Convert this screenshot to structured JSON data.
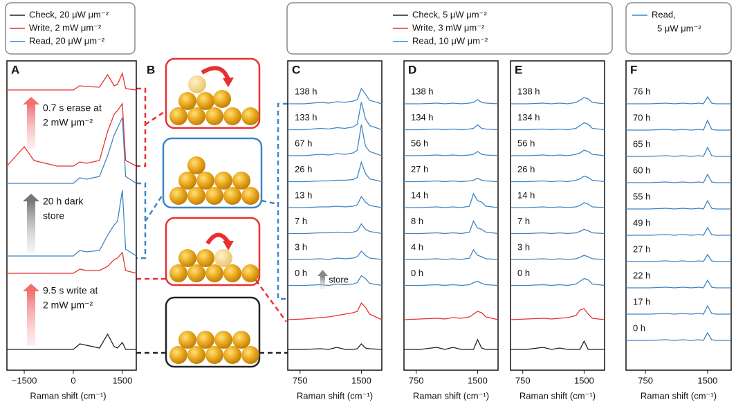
{
  "legend_A": [
    "Check, 20 μW μm⁻²",
    "Write, 2 mW μm⁻²",
    "Read, 20 μW μm⁻²"
  ],
  "legend_CDE": [
    "Check, 5 μW μm⁻²",
    "Write, 3 mW μm⁻²",
    "Read, 10 μW μm⁻²"
  ],
  "legend_F": [
    "Read,",
    "5 μW μm⁻²"
  ],
  "colors": {
    "check": "#222222",
    "write": "#e8302f",
    "read": "#3d85c6"
  },
  "panel_B_label": "B",
  "x_label": "Raman shift (cm⁻¹)",
  "panels": [
    {
      "label": "A",
      "xlim": [
        -2030,
        1925
      ],
      "xticks": [
        {
          "value": -1500,
          "label": "−1500"
        },
        0,
        1500
      ],
      "x": [
        -2030,
        -1500,
        -1200,
        -500,
        0,
        200,
        400,
        800,
        1050,
        1250,
        1350,
        1500,
        1600,
        1925
      ],
      "annotations": [
        {
          "lines": [
            "0.7 s erase at",
            "2 mW μm⁻²"
          ],
          "color": "#e8302f"
        },
        {
          "lines": [
            "20 h dark",
            "store"
          ],
          "color": "#222222"
        },
        {
          "lines": [
            "9.5 s write at",
            "2 mW μm⁻²"
          ],
          "color": "#e8302f"
        }
      ],
      "traces": [
        {
          "kind": "write",
          "values": [
            0,
            0,
            0,
            0,
            0,
            6,
            5,
            4,
            22,
            6,
            8,
            24,
            2,
            0
          ]
        },
        {
          "kind": "write",
          "values": [
            0,
            28,
            8,
            0,
            0,
            6,
            4,
            8,
            50,
            75,
            80,
            90,
            8,
            0
          ]
        },
        {
          "kind": "read",
          "values": [
            0,
            0,
            0,
            0,
            0,
            8,
            6,
            10,
            40,
            70,
            80,
            95,
            10,
            0
          ]
        },
        {
          "kind": "read",
          "values": [
            0,
            0,
            0,
            0,
            0,
            8,
            6,
            8,
            30,
            45,
            50,
            95,
            10,
            0
          ]
        },
        {
          "kind": "write",
          "values": [
            0,
            0,
            0,
            0,
            0,
            6,
            4,
            4,
            10,
            20,
            22,
            30,
            4,
            0
          ]
        },
        {
          "kind": "check",
          "values": [
            0,
            0,
            0,
            0,
            0,
            8,
            6,
            2,
            22,
            4,
            2,
            10,
            0,
            0
          ]
        }
      ]
    },
    {
      "label": "C",
      "xlim": [
        600,
        1750
      ],
      "xticks": [
        750,
        1500
      ],
      "x": [
        600,
        800,
        1000,
        1100,
        1200,
        1300,
        1400,
        1450,
        1500,
        1550,
        1600,
        1750
      ],
      "annotations": [
        {
          "lines": [
            "store"
          ],
          "color": "#222222"
        }
      ],
      "traces": [
        {
          "kind": "read",
          "time": "138 h",
          "values": [
            0,
            0,
            2,
            1,
            3,
            2,
            4,
            6,
            22,
            14,
            5,
            0
          ]
        },
        {
          "kind": "read",
          "time": "133 h",
          "values": [
            0,
            0,
            2,
            1,
            3,
            2,
            4,
            8,
            40,
            16,
            6,
            0
          ]
        },
        {
          "kind": "read",
          "time": "67 h",
          "values": [
            0,
            0,
            2,
            1,
            3,
            2,
            4,
            8,
            45,
            14,
            6,
            0
          ]
        },
        {
          "kind": "read",
          "time": "26 h",
          "values": [
            0,
            0,
            1,
            1,
            2,
            2,
            3,
            6,
            28,
            12,
            4,
            0
          ]
        },
        {
          "kind": "read",
          "time": "13 h",
          "values": [
            0,
            0,
            1,
            1,
            2,
            1,
            2,
            4,
            16,
            8,
            3,
            0
          ]
        },
        {
          "kind": "read",
          "time": "7 h",
          "values": [
            0,
            0,
            1,
            1,
            2,
            1,
            2,
            4,
            14,
            6,
            3,
            0
          ]
        },
        {
          "kind": "read",
          "time": "3 h",
          "values": [
            0,
            0,
            1,
            0,
            2,
            1,
            2,
            4,
            12,
            6,
            2,
            0
          ]
        },
        {
          "kind": "read",
          "time": "0 h",
          "values": [
            0,
            0,
            1,
            0,
            2,
            1,
            2,
            4,
            14,
            10,
            3,
            0
          ]
        },
        {
          "kind": "write",
          "values": [
            0,
            1,
            3,
            4,
            6,
            8,
            10,
            12,
            24,
            18,
            8,
            0
          ]
        },
        {
          "kind": "check",
          "values": [
            0,
            0,
            1,
            0,
            3,
            0,
            0,
            1,
            8,
            2,
            1,
            0
          ]
        }
      ]
    },
    {
      "label": "D",
      "xlim": [
        600,
        1750
      ],
      "xticks": [
        750,
        1500
      ],
      "x": [
        600,
        800,
        1000,
        1100,
        1200,
        1300,
        1400,
        1450,
        1500,
        1550,
        1600,
        1750
      ],
      "traces": [
        {
          "kind": "read",
          "time": "138 h",
          "values": [
            0,
            0,
            1,
            0,
            1,
            0,
            1,
            2,
            6,
            2,
            1,
            0
          ]
        },
        {
          "kind": "read",
          "time": "134 h",
          "values": [
            0,
            0,
            1,
            0,
            1,
            0,
            1,
            2,
            7,
            2,
            1,
            0
          ]
        },
        {
          "kind": "read",
          "time": "56 h",
          "values": [
            0,
            0,
            1,
            0,
            1,
            0,
            1,
            2,
            6,
            2,
            1,
            0
          ]
        },
        {
          "kind": "read",
          "time": "27 h",
          "values": [
            0,
            0,
            1,
            0,
            1,
            0,
            1,
            2,
            5,
            2,
            1,
            0
          ]
        },
        {
          "kind": "read",
          "time": "14 h",
          "values": [
            0,
            0,
            1,
            0,
            1,
            0,
            2,
            20,
            10,
            8,
            2,
            0
          ]
        },
        {
          "kind": "read",
          "time": "8 h",
          "values": [
            0,
            0,
            1,
            0,
            1,
            0,
            2,
            18,
            8,
            6,
            2,
            0
          ]
        },
        {
          "kind": "read",
          "time": "4 h",
          "values": [
            0,
            0,
            1,
            0,
            1,
            0,
            2,
            14,
            6,
            4,
            1,
            0
          ]
        },
        {
          "kind": "read",
          "time": "0 h",
          "values": [
            0,
            0,
            1,
            0,
            1,
            0,
            1,
            4,
            6,
            3,
            1,
            0
          ]
        },
        {
          "kind": "write",
          "values": [
            0,
            1,
            2,
            1,
            3,
            2,
            4,
            8,
            12,
            10,
            4,
            0
          ]
        },
        {
          "kind": "check",
          "values": [
            0,
            0,
            3,
            0,
            3,
            0,
            0,
            0,
            14,
            2,
            0,
            0
          ]
        }
      ]
    },
    {
      "label": "E",
      "xlim": [
        600,
        1750
      ],
      "xticks": [
        750,
        1500
      ],
      "x": [
        600,
        800,
        1000,
        1100,
        1200,
        1300,
        1400,
        1450,
        1500,
        1550,
        1600,
        1750
      ],
      "traces": [
        {
          "kind": "read",
          "time": "138 h",
          "values": [
            0,
            0,
            1,
            0,
            1,
            0,
            2,
            5,
            9,
            7,
            2,
            0
          ]
        },
        {
          "kind": "read",
          "time": "134 h",
          "values": [
            0,
            0,
            1,
            0,
            1,
            0,
            2,
            6,
            10,
            8,
            2,
            0
          ]
        },
        {
          "kind": "read",
          "time": "56 h",
          "values": [
            0,
            0,
            1,
            0,
            1,
            0,
            2,
            4,
            8,
            6,
            2,
            0
          ]
        },
        {
          "kind": "read",
          "time": "26 h",
          "values": [
            0,
            0,
            1,
            0,
            1,
            0,
            2,
            4,
            8,
            6,
            2,
            0
          ]
        },
        {
          "kind": "read",
          "time": "14 h",
          "values": [
            0,
            0,
            1,
            0,
            1,
            0,
            1,
            3,
            7,
            5,
            1,
            0
          ]
        },
        {
          "kind": "read",
          "time": "7 h",
          "values": [
            0,
            0,
            1,
            0,
            1,
            0,
            1,
            3,
            6,
            4,
            1,
            0
          ]
        },
        {
          "kind": "read",
          "time": "3 h",
          "values": [
            0,
            0,
            1,
            0,
            1,
            0,
            1,
            3,
            6,
            4,
            1,
            0
          ]
        },
        {
          "kind": "read",
          "time": "0 h",
          "values": [
            0,
            0,
            1,
            0,
            1,
            0,
            2,
            6,
            10,
            8,
            2,
            0
          ]
        },
        {
          "kind": "write",
          "values": [
            0,
            1,
            2,
            1,
            2,
            3,
            6,
            14,
            16,
            8,
            2,
            0
          ]
        },
        {
          "kind": "check",
          "values": [
            0,
            0,
            3,
            0,
            2,
            0,
            0,
            0,
            12,
            0,
            0,
            0
          ]
        }
      ]
    },
    {
      "label": "F",
      "xlim": [
        515,
        1785
      ],
      "xticks": [
        750,
        1500
      ],
      "x": [
        515,
        800,
        1000,
        1100,
        1200,
        1300,
        1400,
        1450,
        1500,
        1550,
        1600,
        1785
      ],
      "traces": [
        {
          "kind": "read",
          "time": "76 h",
          "values": [
            0,
            0,
            1,
            0,
            1,
            0,
            1,
            0,
            10,
            1,
            0,
            0
          ]
        },
        {
          "kind": "read",
          "time": "70 h",
          "values": [
            0,
            0,
            1,
            0,
            1,
            0,
            1,
            0,
            14,
            1,
            0,
            0
          ]
        },
        {
          "kind": "read",
          "time": "65 h",
          "values": [
            0,
            0,
            1,
            0,
            1,
            0,
            1,
            0,
            13,
            1,
            0,
            0
          ]
        },
        {
          "kind": "read",
          "time": "60 h",
          "values": [
            0,
            0,
            1,
            0,
            1,
            0,
            1,
            0,
            12,
            1,
            0,
            0
          ]
        },
        {
          "kind": "read",
          "time": "55 h",
          "values": [
            0,
            0,
            1,
            0,
            1,
            0,
            1,
            0,
            12,
            1,
            0,
            0
          ]
        },
        {
          "kind": "read",
          "time": "49 h",
          "values": [
            0,
            0,
            1,
            0,
            1,
            0,
            1,
            0,
            11,
            1,
            0,
            0
          ]
        },
        {
          "kind": "read",
          "time": "27 h",
          "values": [
            0,
            0,
            1,
            0,
            1,
            0,
            1,
            0,
            10,
            1,
            0,
            0
          ]
        },
        {
          "kind": "read",
          "time": "22 h",
          "values": [
            0,
            0,
            1,
            0,
            1,
            0,
            1,
            0,
            11,
            1,
            0,
            0
          ]
        },
        {
          "kind": "read",
          "time": "17 h",
          "values": [
            0,
            0,
            1,
            0,
            1,
            0,
            1,
            0,
            12,
            1,
            0,
            0
          ]
        },
        {
          "kind": "read",
          "time": "0 h",
          "values": [
            0,
            0,
            1,
            0,
            1,
            0,
            1,
            0,
            11,
            1,
            0,
            0
          ]
        }
      ]
    }
  ]
}
